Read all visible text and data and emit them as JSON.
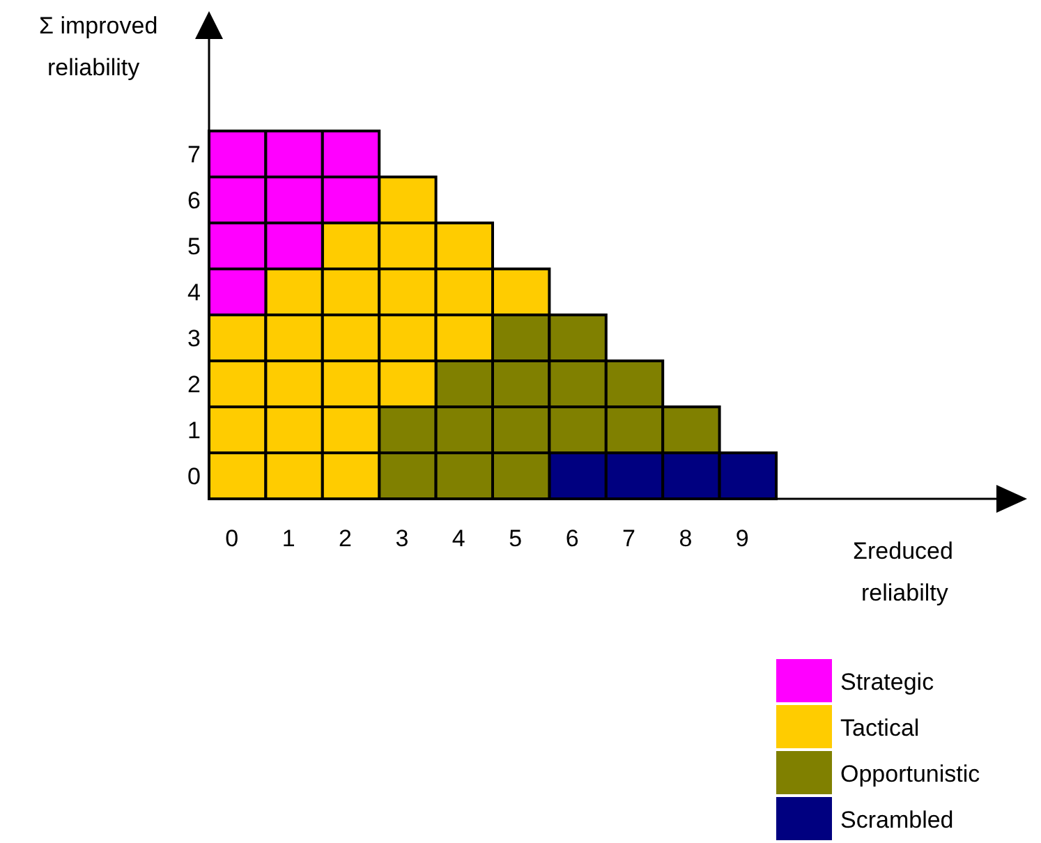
{
  "chart_data": {
    "type": "bar",
    "stacked": true,
    "xlabel": "Σreduced reliabilty",
    "ylabel": "Σ improved reliability",
    "categories": [
      "0",
      "1",
      "2",
      "3",
      "4",
      "5",
      "6",
      "7",
      "8",
      "9"
    ],
    "ylim": [
      0,
      10
    ],
    "yticks": [
      {
        "value": 0.5,
        "label": "0"
      },
      {
        "value": 1.5,
        "label": "1"
      },
      {
        "value": 2.5,
        "label": "2"
      },
      {
        "value": 3.5,
        "label": "3"
      },
      {
        "value": 4.5,
        "label": "4"
      },
      {
        "value": 5.5,
        "label": "5"
      },
      {
        "value": 6.5,
        "label": "6"
      },
      {
        "value": 7.5,
        "label": "7"
      }
    ],
    "series": [
      {
        "name": "Scrambled",
        "color": "#000080",
        "values": [
          0,
          0,
          0,
          0,
          0,
          0,
          1,
          1,
          1,
          1
        ]
      },
      {
        "name": "Opportunistic",
        "color": "#808000",
        "values": [
          0,
          0,
          0,
          2,
          3,
          4,
          3,
          2,
          1,
          0
        ]
      },
      {
        "name": "Tactical",
        "color": "#ffcc00",
        "values": [
          4,
          5,
          6,
          5,
          3,
          1,
          0,
          0,
          0,
          0
        ]
      },
      {
        "name": "Strategic",
        "color": "#ff00ff",
        "values": [
          4,
          3,
          2,
          0,
          0,
          0,
          0,
          0,
          0,
          0
        ]
      }
    ],
    "legend": "bottom right"
  }
}
